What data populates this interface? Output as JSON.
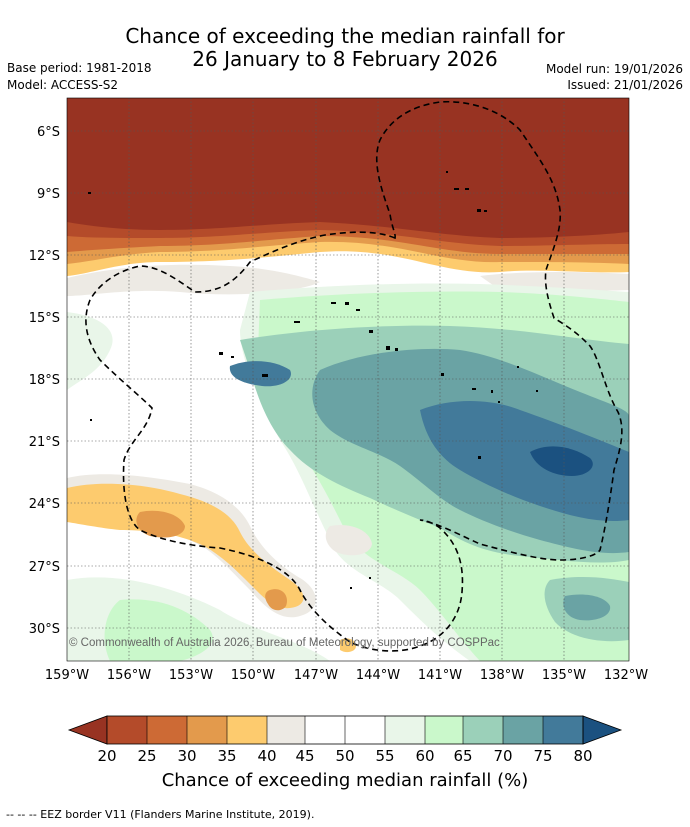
{
  "header": {
    "title_line1": "Chance of exceeding the median rainfall for",
    "title_line2": "26 January to 8 February 2026",
    "base_period": "Base period: 1981-2018",
    "model": "Model: ACCESS-S2",
    "model_run": "Model run: 19/01/2026",
    "issued": "Issued: 21/01/2026"
  },
  "map": {
    "lat_labels": [
      "6°S",
      "9°S",
      "12°S",
      "15°S",
      "18°S",
      "21°S",
      "24°S",
      "27°S",
      "30°S"
    ],
    "lon_labels": [
      "159°W",
      "156°W",
      "153°W",
      "150°W",
      "147°W",
      "144°W",
      "141°W",
      "138°W",
      "135°W",
      "132°W"
    ],
    "copyright": "© Commonwealth of Australia 2026, Bureau of Meteorology, supported by COSPPac",
    "colors": {
      "c20": "#983322",
      "c25": "#b44b2a",
      "c30": "#cd6a35",
      "c35": "#e39a4c",
      "c40": "#fdcb6e",
      "c45": "#edeae4",
      "c50": "#ffffff",
      "c55": "#ffffff",
      "c60": "#e9f6e9",
      "c65": "#caf8cb",
      "c70": "#9bd0b9",
      "c75": "#6aa3a4",
      "c80": "#427a9a",
      "c85": "#1b5180"
    }
  },
  "colorbar": {
    "ticks": [
      "20",
      "25",
      "30",
      "35",
      "40",
      "45",
      "50",
      "55",
      "60",
      "65",
      "70",
      "75",
      "80"
    ],
    "label": "Chance of exceeding median rainfall (%)"
  },
  "footer": {
    "legend": "-- -- -- EEZ border V11 (Flanders Marine Institute, 2019)."
  }
}
